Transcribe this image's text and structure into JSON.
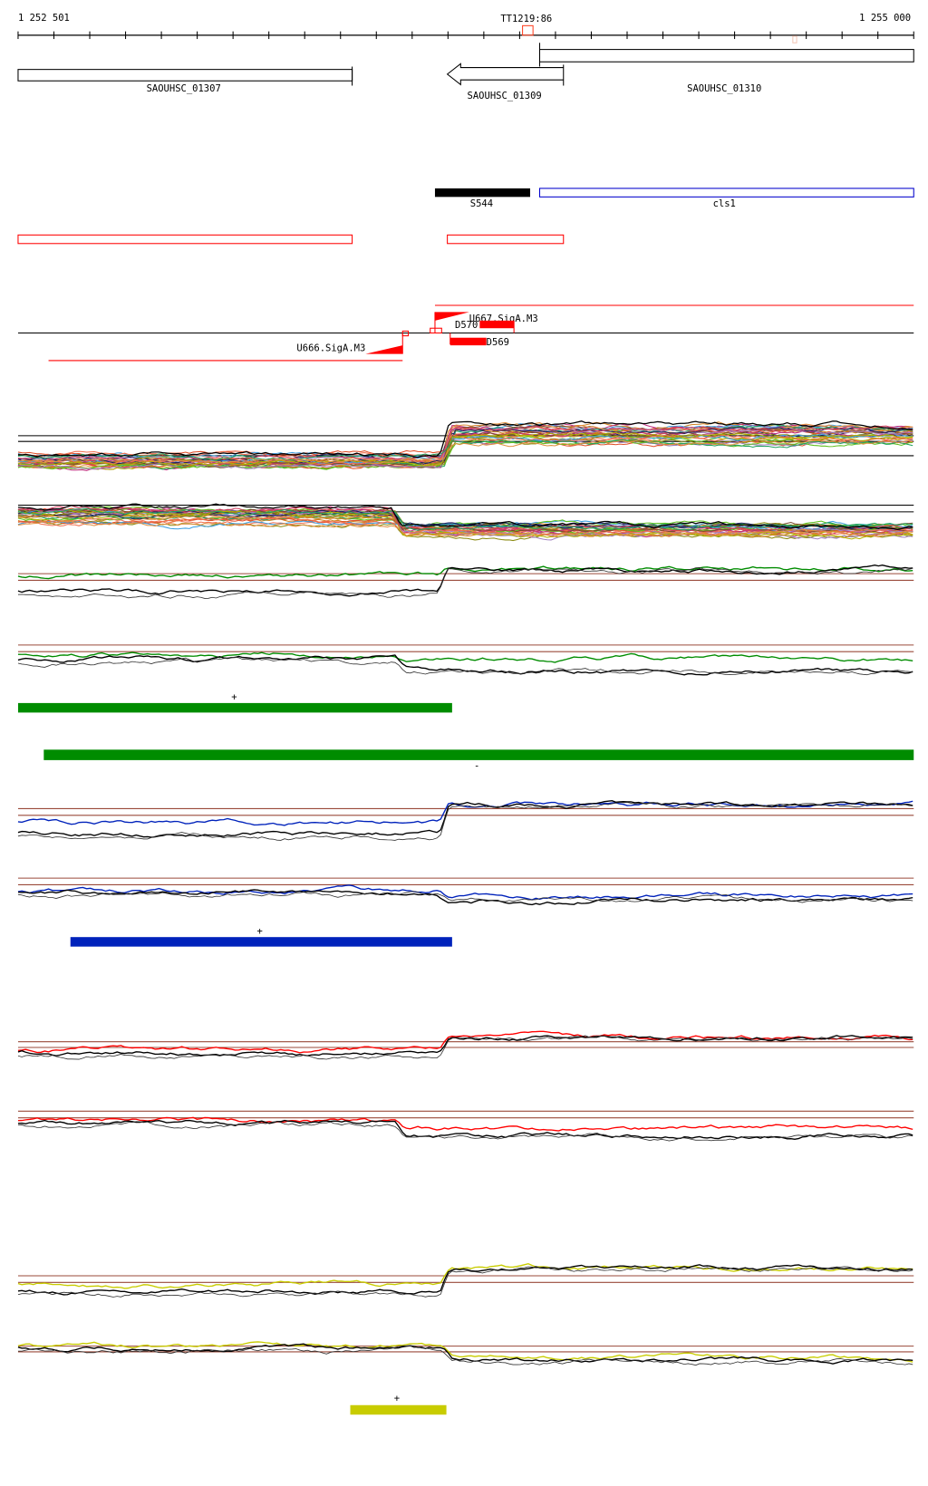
{
  "ruler": {
    "start_label": "1 252 501",
    "center_label": "TT1219:86",
    "end_label": "1 255 000"
  },
  "genes": [
    {
      "label": "SAOUHSC_01307",
      "strand": "+"
    },
    {
      "label": "SAOUHSC_01309",
      "strand": "-"
    },
    {
      "label": "SAOUHSC_01310",
      "strand": "+"
    }
  ],
  "features": {
    "s544": "S544",
    "cls1": "cls1"
  },
  "promoters": {
    "u667": "U667.SigA.M3",
    "u666": "U666.SigA.M3",
    "d570": "D570",
    "d569": "D569"
  },
  "strand_marks": {
    "green_plus": "+",
    "green_minus": "-",
    "blue_plus": "+",
    "yellow_plus": "+"
  },
  "colors": {
    "green": "#008c00",
    "blue": "#0022bb",
    "red": "#ff0000",
    "yellow": "#c8cc00",
    "brown": "#9a4a3a",
    "cls1": "#0000cc"
  }
}
